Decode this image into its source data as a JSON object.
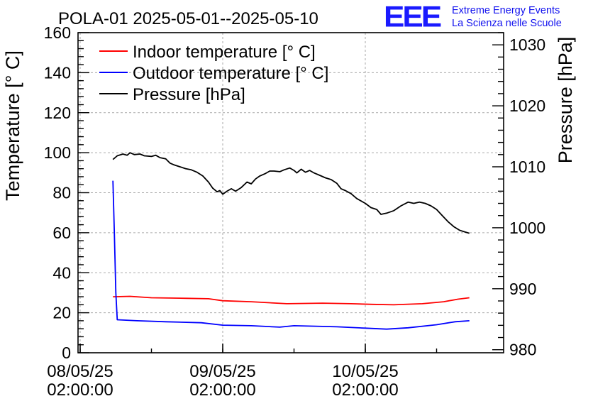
{
  "branding": {
    "logo_text": "EEE",
    "line1": "Extreme Energy Events",
    "line2": "La Scienza nelle Scuole",
    "color": "#1a1aff"
  },
  "chart_data": {
    "type": "line",
    "title": "POLA-01 2025-05-01--2025-05-10",
    "xlabel": "",
    "ylabel": "Temperature [° C]",
    "y2label": "Pressure [hPa]",
    "grid": true,
    "legend_position": "top-left",
    "xlim": [
      0,
      3
    ],
    "ylim": [
      0,
      160
    ],
    "y2lim": [
      979.5,
      1032
    ],
    "x_ticks": [
      {
        "x": 0,
        "line1": "08/05/25",
        "line2": "02:00:00"
      },
      {
        "x": 1,
        "line1": "09/05/25",
        "line2": "02:00:00"
      },
      {
        "x": 2,
        "line1": "10/05/25",
        "line2": "02:00:00"
      }
    ],
    "x_minor_step": 0.5,
    "y_ticks": [
      0,
      20,
      40,
      60,
      80,
      100,
      120,
      140,
      160
    ],
    "y_minor_step": 4,
    "y2_ticks": [
      980,
      990,
      1000,
      1010,
      1020,
      1030
    ],
    "y2_minor_step": 2,
    "series": [
      {
        "name": "Indoor temperature [° C]",
        "color": "#ff0000",
        "axis": "y",
        "points": [
          [
            0.23,
            28.0
          ],
          [
            0.35,
            28.2
          ],
          [
            0.5,
            27.5
          ],
          [
            0.75,
            27.2
          ],
          [
            0.9,
            27.0
          ],
          [
            1.0,
            26.0
          ],
          [
            1.2,
            25.5
          ],
          [
            1.45,
            24.5
          ],
          [
            1.7,
            24.8
          ],
          [
            1.9,
            24.5
          ],
          [
            2.05,
            24.2
          ],
          [
            2.2,
            24.0
          ],
          [
            2.4,
            24.5
          ],
          [
            2.55,
            25.5
          ],
          [
            2.65,
            26.8
          ],
          [
            2.73,
            27.5
          ]
        ]
      },
      {
        "name": "Outdoor temperature [° C]",
        "color": "#0000ff",
        "axis": "y",
        "points": [
          [
            0.23,
            86.0
          ],
          [
            0.24,
            60.0
          ],
          [
            0.25,
            30.0
          ],
          [
            0.26,
            16.5
          ],
          [
            0.4,
            16.0
          ],
          [
            0.6,
            15.5
          ],
          [
            0.85,
            15.0
          ],
          [
            1.0,
            13.8
          ],
          [
            1.2,
            13.5
          ],
          [
            1.4,
            12.8
          ],
          [
            1.5,
            13.5
          ],
          [
            1.8,
            13.0
          ],
          [
            2.0,
            12.3
          ],
          [
            2.15,
            11.8
          ],
          [
            2.3,
            12.5
          ],
          [
            2.5,
            14.0
          ],
          [
            2.63,
            15.5
          ],
          [
            2.73,
            16.0
          ]
        ]
      },
      {
        "name": "Pressure [hPa]",
        "color": "#000000",
        "axis": "y2",
        "points": [
          [
            0.23,
            1011.2
          ],
          [
            0.26,
            1011.8
          ],
          [
            0.3,
            1012.1
          ],
          [
            0.33,
            1011.9
          ],
          [
            0.35,
            1012.3
          ],
          [
            0.38,
            1012.0
          ],
          [
            0.42,
            1012.1
          ],
          [
            0.45,
            1011.8
          ],
          [
            0.5,
            1011.7
          ],
          [
            0.53,
            1011.9
          ],
          [
            0.56,
            1011.5
          ],
          [
            0.6,
            1011.3
          ],
          [
            0.63,
            1010.6
          ],
          [
            0.66,
            1010.3
          ],
          [
            0.7,
            1010.0
          ],
          [
            0.74,
            1009.7
          ],
          [
            0.78,
            1009.5
          ],
          [
            0.82,
            1009.1
          ],
          [
            0.86,
            1008.5
          ],
          [
            0.9,
            1007.5
          ],
          [
            0.93,
            1006.5
          ],
          [
            0.96,
            1005.9
          ],
          [
            0.98,
            1006.1
          ],
          [
            1.0,
            1005.5
          ],
          [
            1.03,
            1006.0
          ],
          [
            1.06,
            1006.4
          ],
          [
            1.09,
            1006.0
          ],
          [
            1.13,
            1006.6
          ],
          [
            1.17,
            1007.5
          ],
          [
            1.2,
            1007.2
          ],
          [
            1.23,
            1008.0
          ],
          [
            1.26,
            1008.5
          ],
          [
            1.3,
            1008.9
          ],
          [
            1.33,
            1009.3
          ],
          [
            1.36,
            1009.3
          ],
          [
            1.4,
            1009.2
          ],
          [
            1.43,
            1009.5
          ],
          [
            1.47,
            1009.8
          ],
          [
            1.5,
            1009.4
          ],
          [
            1.52,
            1009.0
          ],
          [
            1.55,
            1009.6
          ],
          [
            1.58,
            1009.1
          ],
          [
            1.61,
            1009.4
          ],
          [
            1.64,
            1009.0
          ],
          [
            1.68,
            1008.6
          ],
          [
            1.72,
            1008.2
          ],
          [
            1.76,
            1007.9
          ],
          [
            1.8,
            1007.3
          ],
          [
            1.83,
            1006.4
          ],
          [
            1.86,
            1006.1
          ],
          [
            1.9,
            1005.6
          ],
          [
            1.94,
            1004.8
          ],
          [
            2.0,
            1004.0
          ],
          [
            2.04,
            1003.3
          ],
          [
            2.08,
            1003.0
          ],
          [
            2.11,
            1002.2
          ],
          [
            2.15,
            1002.4
          ],
          [
            2.2,
            1002.8
          ],
          [
            2.25,
            1003.6
          ],
          [
            2.3,
            1004.2
          ],
          [
            2.34,
            1004.0
          ],
          [
            2.38,
            1004.2
          ],
          [
            2.42,
            1004.0
          ],
          [
            2.46,
            1003.6
          ],
          [
            2.5,
            1003.0
          ],
          [
            2.54,
            1002.0
          ],
          [
            2.58,
            1001.0
          ],
          [
            2.62,
            1000.2
          ],
          [
            2.66,
            999.6
          ],
          [
            2.7,
            999.3
          ],
          [
            2.73,
            999.1
          ]
        ]
      }
    ]
  }
}
